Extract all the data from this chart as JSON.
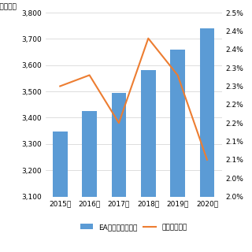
{
  "years": [
    "2015年",
    "2016年",
    "2017年",
    "2018年",
    "2019年",
    "2020年"
  ],
  "bar_values": [
    3347,
    3425,
    3495,
    3580,
    3660,
    3740
  ],
  "line_values": [
    2.3,
    2.33,
    2.2,
    2.43,
    2.33,
    2.1
  ],
  "bar_color": "#5B9BD5",
  "line_color": "#ED7D31",
  "ylabel_left": "（十億円）",
  "ylim_left": [
    3100,
    3800
  ],
  "ylim_right": [
    2.0,
    2.5
  ],
  "yticks_left": [
    3100,
    3200,
    3300,
    3400,
    3500,
    3600,
    3700,
    3800
  ],
  "yticks_right_vals": [
    2.0,
    2.05,
    2.1,
    2.15,
    2.2,
    2.25,
    2.3,
    2.35,
    2.4,
    2.45,
    2.5
  ],
  "yticks_right_labels": [
    "2.0%",
    "2.0%",
    "2.1%",
    "2.1%",
    "2.2%",
    "2.2%",
    "2.3%",
    "2.3%",
    "2.4%",
    "2.4%",
    "2.5%"
  ],
  "legend_bar": "EAソリューション",
  "legend_line": "前年比成長率",
  "bg_color": "#FFFFFF",
  "grid_color": "#D0D0D0"
}
